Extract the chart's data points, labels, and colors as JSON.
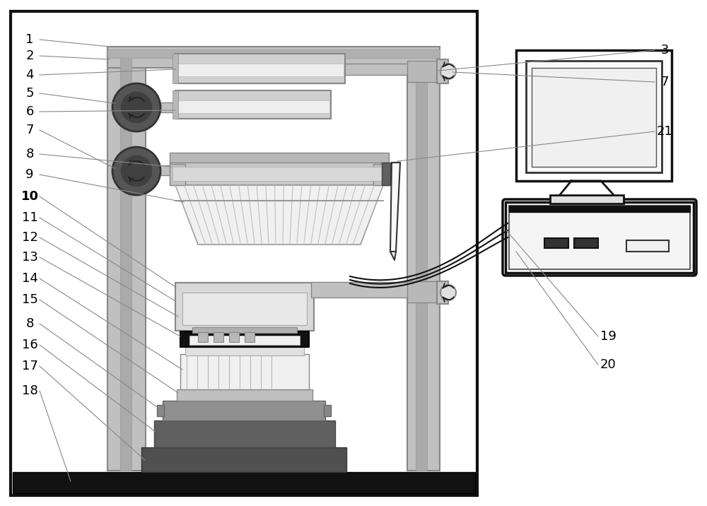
{
  "bg": "#ffffff",
  "c_black": "#111111",
  "c_white": "#ffffff",
  "c_vlight": "#eeeeee",
  "c_light": "#d8d8d8",
  "c_midlight": "#c0c0c0",
  "c_mid": "#a8a8a8",
  "c_dark": "#808080",
  "c_darker": "#606060",
  "c_ddark": "#404040",
  "c_darkest": "#1a1a1a",
  "label_size": 13,
  "bold_label": "10"
}
